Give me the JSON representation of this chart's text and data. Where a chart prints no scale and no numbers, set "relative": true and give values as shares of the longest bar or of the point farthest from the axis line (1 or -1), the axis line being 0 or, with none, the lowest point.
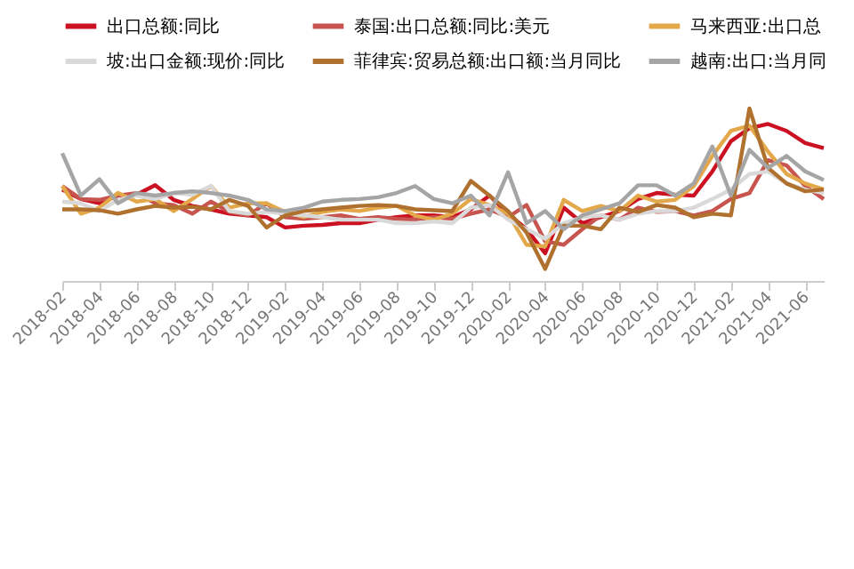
{
  "chart_data": {
    "type": "line",
    "relative": true,
    "legend": "top",
    "grid": false,
    "categories": [
      "2018-02",
      null,
      "2018-04",
      null,
      "2018-06",
      null,
      "2018-08",
      null,
      "2018-10",
      null,
      "2018-12",
      null,
      "2019-02",
      null,
      "2019-04",
      null,
      "2019-06",
      null,
      "2019-08",
      null,
      "2019-10",
      null,
      "2019-12",
      null,
      "2020-02",
      null,
      "2020-04",
      null,
      "2020-06",
      null,
      "2020-08",
      null,
      "2020-10",
      null,
      "2020-12",
      null,
      "2021-02",
      null,
      "2021-04",
      null,
      "2021-06",
      null
    ],
    "series": [
      {
        "name": "出口总额:同比",
        "color": "#cc1122",
        "values": [
          0.53,
          0.475,
          0.45,
          0.495,
          0.5,
          0.555,
          0.47,
          0.435,
          0.415,
          0.39,
          0.38,
          0.37,
          0.31,
          0.32,
          0.325,
          0.335,
          0.335,
          0.355,
          0.37,
          0.38,
          0.38,
          0.37,
          0.415,
          0.495,
          0.39,
          0.3,
          0.16,
          0.425,
          0.335,
          0.37,
          0.405,
          0.475,
          0.51,
          0.5,
          0.495,
          0.635,
          0.81,
          0.885,
          0.91,
          0.87,
          0.8,
          0.77
        ]
      },
      {
        "name": "泰国:出口总额:同比:美元",
        "color": "#c85450",
        "values": [
          0.55,
          0.475,
          0.47,
          0.495,
          0.51,
          0.45,
          0.44,
          0.39,
          0.46,
          0.4,
          0.38,
          0.45,
          0.37,
          0.36,
          0.37,
          0.38,
          0.36,
          0.37,
          0.36,
          0.355,
          0.37,
          0.36,
          0.39,
          0.415,
          0.37,
          0.44,
          0.23,
          0.21,
          0.3,
          0.38,
          0.355,
          0.425,
          0.4,
          0.405,
          0.38,
          0.405,
          0.475,
          0.51,
          0.7,
          0.67,
          0.55,
          0.475
        ]
      },
      {
        "name": "马来西亚:出口总",
        "color": "#e3a84a",
        "values": [
          0.55,
          0.39,
          0.425,
          0.51,
          0.46,
          0.475,
          0.405,
          0.475,
          0.55,
          0.425,
          0.45,
          0.45,
          0.4,
          0.37,
          0.4,
          0.415,
          0.405,
          0.425,
          0.435,
          0.38,
          0.355,
          0.39,
          0.475,
          0.44,
          0.39,
          0.21,
          0.2,
          0.47,
          0.405,
          0.435,
          0.405,
          0.495,
          0.46,
          0.47,
          0.55,
          0.725,
          0.87,
          0.9,
          0.75,
          0.62,
          0.565,
          0.53
        ]
      },
      {
        "name": "坡:出口金额:现价:同比",
        "color": "#d9d9d9",
        "values": [
          0.46,
          0.45,
          0.405,
          0.47,
          0.495,
          0.475,
          0.51,
          0.5,
          0.55,
          0.405,
          0.39,
          0.4,
          0.39,
          0.38,
          0.37,
          0.355,
          0.355,
          0.355,
          0.335,
          0.335,
          0.345,
          0.335,
          0.425,
          0.44,
          0.355,
          0.3,
          0.245,
          0.335,
          0.37,
          0.38,
          0.355,
          0.39,
          0.405,
          0.405,
          0.425,
          0.475,
          0.53,
          0.62,
          0.635,
          0.565,
          0.53,
          0.51
        ]
      },
      {
        "name": "菲律宾:贸易总额:出口额:当月同比",
        "color": "#b0702e",
        "values": [
          0.415,
          0.415,
          0.41,
          0.39,
          0.415,
          0.435,
          0.425,
          0.43,
          0.415,
          0.47,
          0.435,
          0.31,
          0.38,
          0.405,
          0.415,
          0.425,
          0.435,
          0.44,
          0.435,
          0.415,
          0.41,
          0.405,
          0.58,
          0.495,
          0.405,
          0.28,
          0.07,
          0.32,
          0.32,
          0.3,
          0.425,
          0.4,
          0.44,
          0.425,
          0.37,
          0.39,
          0.38,
          1.0,
          0.655,
          0.565,
          0.52,
          0.53
        ]
      },
      {
        "name": "越南:出口:当月同",
        "color": "#a5a5a5",
        "values": [
          0.74,
          0.495,
          0.59,
          0.45,
          0.51,
          0.495,
          0.51,
          0.52,
          0.51,
          0.495,
          0.47,
          0.415,
          0.405,
          0.425,
          0.46,
          0.47,
          0.475,
          0.485,
          0.51,
          0.55,
          0.475,
          0.45,
          0.495,
          0.38,
          0.63,
          0.335,
          0.405,
          0.3,
          0.38,
          0.415,
          0.45,
          0.555,
          0.555,
          0.495,
          0.565,
          0.78,
          0.495,
          0.76,
          0.655,
          0.725,
          0.635,
          0.585
        ]
      }
    ]
  }
}
